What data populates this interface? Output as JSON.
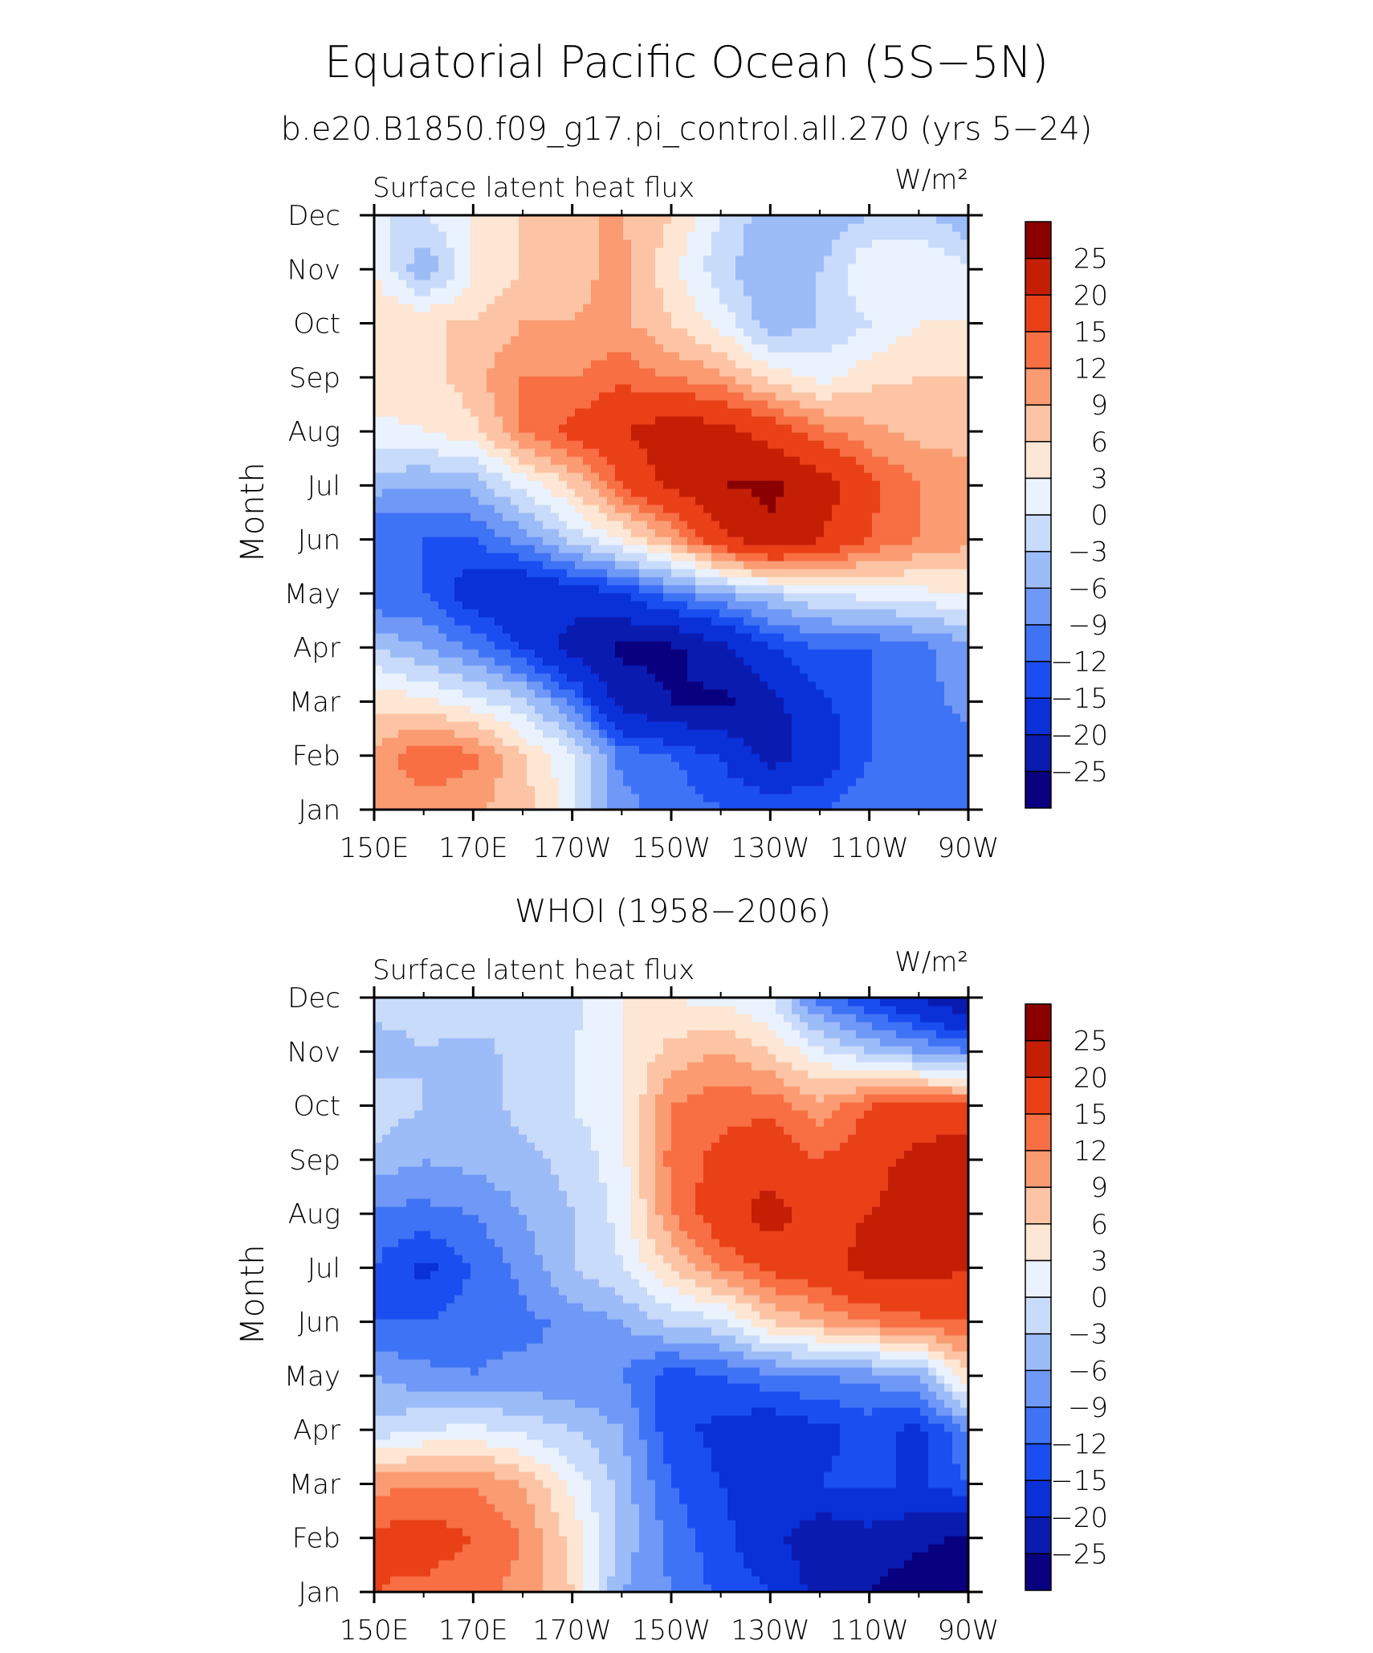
{
  "figure": {
    "title": "Equatorial Pacific Ocean (5S−5N)",
    "subtitle": "b.e20.B1850.f09_g17.pi_control.all.270 (yrs 5−24)"
  },
  "chart_data": [
    {
      "type": "heatmap",
      "title": "",
      "left_label": "Surface latent heat flux",
      "units": "W/m²",
      "ylabel": "Month",
      "xlabel": "",
      "x_ticks": [
        "150E",
        "170E",
        "170W",
        "150W",
        "130W",
        "110W",
        "90W"
      ],
      "x_lon": [
        150,
        170,
        190,
        210,
        230,
        250,
        270
      ],
      "y_ticks": [
        "Jan",
        "Feb",
        "Mar",
        "Apr",
        "May",
        "Jun",
        "Jul",
        "Aug",
        "Sep",
        "Oct",
        "Nov",
        "Dec"
      ],
      "levels": [
        -25,
        -20,
        -15,
        -12,
        -9,
        -6,
        -3,
        0,
        3,
        6,
        9,
        12,
        15,
        20,
        25
      ],
      "colors": [
        "#08007f",
        "#0a1bb0",
        "#0a30d8",
        "#1b4ef0",
        "#3f73f5",
        "#6f98f7",
        "#9cbcf8",
        "#c9dbfa",
        "#eaf2fd",
        "#fde6d4",
        "#fcc4a4",
        "#fb9b72",
        "#f76f43",
        "#e94018",
        "#c41e05",
        "#8a0000"
      ],
      "lon": [
        150,
        160,
        170,
        180,
        190,
        200,
        210,
        220,
        230,
        240,
        250,
        260,
        270
      ],
      "months": [
        "Jan",
        "Feb",
        "Mar",
        "Apr",
        "May",
        "Jun",
        "Jul",
        "Aug",
        "Sep",
        "Oct",
        "Nov",
        "Dec"
      ],
      "values": [
        [
          9,
          10,
          9,
          8,
          1,
          -8,
          -10,
          -12,
          -12,
          -12,
          -10,
          -10,
          -10
        ],
        [
          10,
          15,
          13,
          6,
          1,
          -10,
          -12,
          -15,
          -22,
          -18,
          -12,
          -12,
          -10
        ],
        [
          5,
          4,
          1,
          -2,
          -10,
          -22,
          -25,
          -26,
          -22,
          -16,
          -12,
          -10,
          -8
        ],
        [
          -3,
          -6,
          -9,
          -15,
          -22,
          -26,
          -26,
          -22,
          -15,
          -12,
          -12,
          -10,
          -7
        ],
        [
          -12,
          -12,
          -18,
          -20,
          -18,
          -15,
          -10,
          -6,
          -3,
          0,
          1,
          2,
          3
        ],
        [
          -12,
          -12,
          -12,
          -8,
          -2,
          3,
          9,
          18,
          24,
          20,
          15,
          12,
          10
        ],
        [
          -5,
          -6,
          -5,
          1,
          6,
          15,
          21,
          25,
          26,
          23,
          16,
          12,
          10
        ],
        [
          2,
          3,
          5,
          12,
          16,
          20,
          23,
          22,
          18,
          13,
          10,
          8,
          8
        ],
        [
          6,
          4,
          8,
          12,
          12,
          14,
          12,
          10,
          5,
          2,
          5,
          6,
          6
        ],
        [
          6,
          6,
          6,
          9,
          9,
          10,
          6,
          2,
          -5,
          -3,
          0,
          3,
          3
        ],
        [
          3,
          -6,
          3,
          6,
          8,
          10,
          4,
          -2,
          -6,
          -3,
          3,
          3,
          1
        ],
        [
          0,
          0,
          3,
          6,
          9,
          9,
          6,
          0,
          -5,
          -6,
          -3,
          -2,
          -6
        ]
      ]
    },
    {
      "type": "heatmap",
      "title": "WHOI (1958−2006)",
      "left_label": "Surface latent heat flux",
      "units": "W/m²",
      "ylabel": "Month",
      "xlabel": "",
      "x_ticks": [
        "150E",
        "170E",
        "170W",
        "150W",
        "130W",
        "110W",
        "90W"
      ],
      "x_lon": [
        150,
        170,
        190,
        210,
        230,
        250,
        270
      ],
      "y_ticks": [
        "Jan",
        "Feb",
        "Mar",
        "Apr",
        "May",
        "Jun",
        "Jul",
        "Aug",
        "Sep",
        "Oct",
        "Nov",
        "Dec"
      ],
      "levels": [
        -25,
        -20,
        -15,
        -12,
        -9,
        -6,
        -3,
        0,
        3,
        6,
        9,
        12,
        15,
        20,
        25
      ],
      "colors": [
        "#08007f",
        "#0a1bb0",
        "#0a30d8",
        "#1b4ef0",
        "#3f73f5",
        "#6f98f7",
        "#9cbcf8",
        "#c9dbfa",
        "#eaf2fd",
        "#fde6d4",
        "#fcc4a4",
        "#fb9b72",
        "#f76f43",
        "#e94018",
        "#c41e05",
        "#8a0000"
      ],
      "lon": [
        150,
        160,
        170,
        180,
        190,
        200,
        210,
        220,
        230,
        240,
        250,
        260,
        270
      ],
      "months": [
        "Jan",
        "Feb",
        "Mar",
        "Apr",
        "May",
        "Jun",
        "Jul",
        "Aug",
        "Sep",
        "Oct",
        "Nov",
        "Dec"
      ],
      "values": [
        [
          15,
          14,
          13,
          11,
          6,
          -6,
          -9,
          -13,
          -15,
          -22,
          -25,
          -28,
          -28
        ],
        [
          16,
          17,
          15,
          12,
          5,
          -4,
          -10,
          -14,
          -18,
          -24,
          -22,
          -24,
          -26
        ],
        [
          11,
          12,
          12,
          9,
          2,
          -4,
          -12,
          -15,
          -16,
          -15,
          -14,
          -16,
          -12
        ],
        [
          -2,
          0,
          1,
          -1,
          -3,
          -6,
          -14,
          -16,
          -18,
          -16,
          -14,
          -16,
          -9
        ],
        [
          -6,
          -8,
          -9,
          -8,
          -9,
          -9,
          -14,
          -12,
          -10,
          -9,
          -8,
          -6,
          6
        ],
        [
          -12,
          -12,
          -10,
          -10,
          -8,
          -6,
          -2,
          -1,
          6,
          9,
          12,
          14,
          15
        ],
        [
          -12,
          -16,
          -12,
          -8,
          -3,
          0,
          6,
          12,
          16,
          18,
          22,
          22,
          20
        ],
        [
          -10,
          -10,
          -9,
          -6,
          -3,
          1,
          12,
          18,
          22,
          18,
          20,
          22,
          21
        ],
        [
          -4,
          -6,
          -5,
          -4,
          -2,
          2,
          13,
          16,
          18,
          15,
          18,
          22,
          24
        ],
        [
          -1,
          -3,
          -5,
          -2,
          0,
          2,
          12,
          14,
          14,
          10,
          15,
          16,
          16
        ],
        [
          -5,
          -3,
          -4,
          -2,
          0,
          3,
          7,
          9,
          6,
          1,
          -3,
          -6,
          -9
        ],
        [
          -1,
          -2,
          -1,
          -3,
          -1,
          3,
          3,
          2,
          0,
          -10,
          -15,
          -20,
          -25
        ]
      ]
    }
  ]
}
